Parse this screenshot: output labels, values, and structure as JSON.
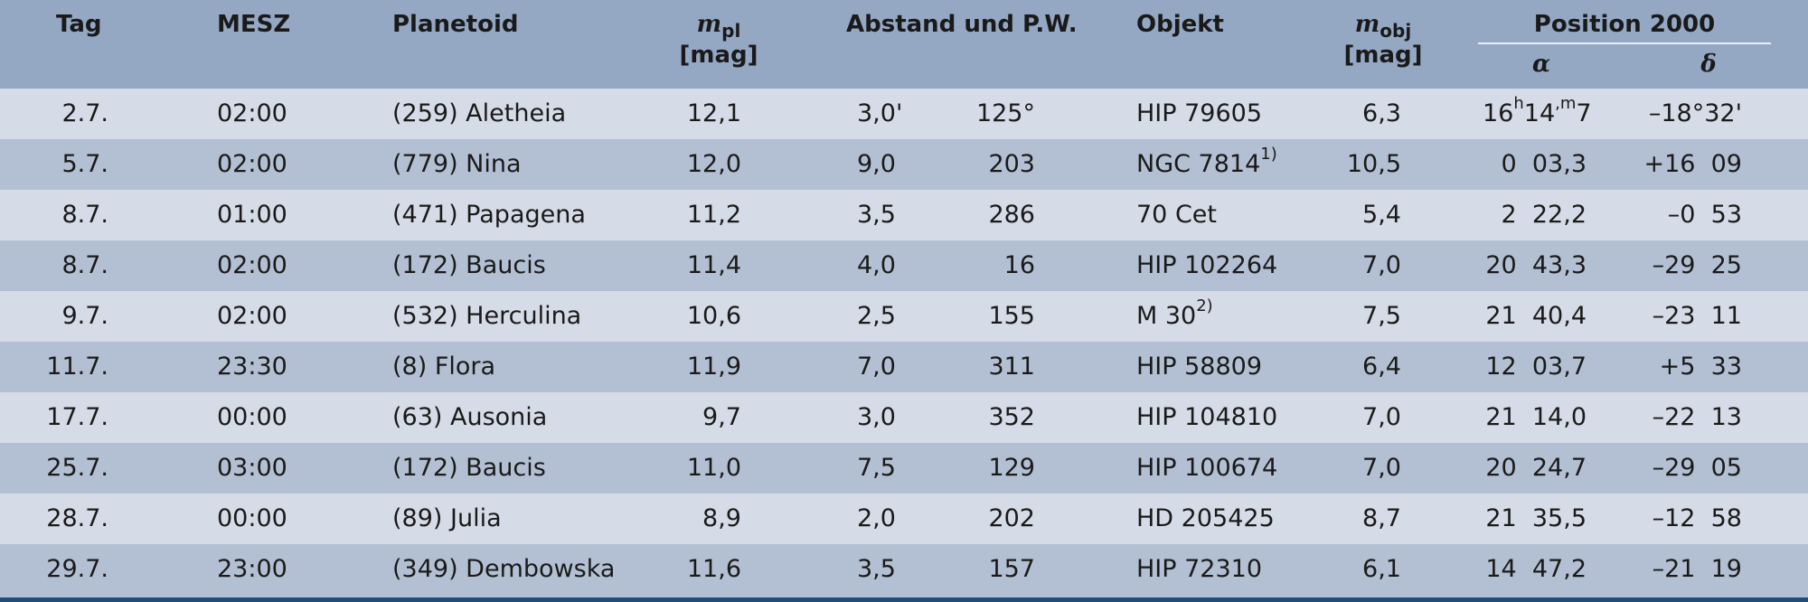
{
  "header": {
    "tag": "Tag",
    "mesz": "MESZ",
    "planetoid": "Planetoid",
    "mpl_main": "m",
    "mpl_sub": "pl",
    "mpl_unit": "[mag]",
    "abstand": "Abstand und P.W.",
    "objekt": "Objekt",
    "mobj_main": "m",
    "mobj_sub": "obj",
    "mobj_unit": "[mag]",
    "position": "Position 2000",
    "alpha": "α",
    "delta": "δ"
  },
  "rows": [
    {
      "tag": "2.7.",
      "mesz": "02:00",
      "planetoid": "(259) Aletheia",
      "mpl": "12,1",
      "abstand": "3,0'",
      "pw": "125°",
      "objekt": "HIP 79605",
      "note": "",
      "mobj": "6,3",
      "alpha_h": "16",
      "alpha_m": "14",
      "alpha_f": "7",
      "delta": "–18°32'"
    },
    {
      "tag": "5.7.",
      "mesz": "02:00",
      "planetoid": "(779) Nina",
      "mpl": "12,0",
      "abstand": "9,0",
      "pw": "203",
      "objekt": "NGC 7814",
      "note": "1)",
      "mobj": "10,5",
      "alpha": "0  03,3",
      "delta": "+16  09"
    },
    {
      "tag": "8.7.",
      "mesz": "01:00",
      "planetoid": "(471) Papagena",
      "mpl": "11,2",
      "abstand": "3,5",
      "pw": "286",
      "objekt": "70 Cet",
      "note": "",
      "mobj": "5,4",
      "alpha": "2  22,2",
      "delta": "–0  53"
    },
    {
      "tag": "8.7.",
      "mesz": "02:00",
      "planetoid": "(172) Baucis",
      "mpl": "11,4",
      "abstand": "4,0",
      "pw": "16",
      "objekt": "HIP 102264",
      "note": "",
      "mobj": "7,0",
      "alpha": "20  43,3",
      "delta": "–29  25"
    },
    {
      "tag": "9.7.",
      "mesz": "02:00",
      "planetoid": "(532) Herculina",
      "mpl": "10,6",
      "abstand": "2,5",
      "pw": "155",
      "objekt": "M 30",
      "note": "2)",
      "mobj": "7,5",
      "alpha": "21  40,4",
      "delta": "–23  11"
    },
    {
      "tag": "11.7.",
      "mesz": "23:30",
      "planetoid": "(8) Flora",
      "mpl": "11,9",
      "abstand": "7,0",
      "pw": "311",
      "objekt": "HIP 58809",
      "note": "",
      "mobj": "6,4",
      "alpha": "12  03,7",
      "delta": "+5  33"
    },
    {
      "tag": "17.7.",
      "mesz": "00:00",
      "planetoid": "(63) Ausonia",
      "mpl": "9,7",
      "abstand": "3,0",
      "pw": "352",
      "objekt": "HIP 104810",
      "note": "",
      "mobj": "7,0",
      "alpha": "21  14,0",
      "delta": "–22  13"
    },
    {
      "tag": "25.7.",
      "mesz": "03:00",
      "planetoid": "(172) Baucis",
      "mpl": "11,0",
      "abstand": "7,5",
      "pw": "129",
      "objekt": "HIP 100674",
      "note": "",
      "mobj": "7,0",
      "alpha": "20  24,7",
      "delta": "–29  05"
    },
    {
      "tag": "28.7.",
      "mesz": "00:00",
      "planetoid": "(89) Julia",
      "mpl": "8,9",
      "abstand": "2,0",
      "pw": "202",
      "objekt": "HD 205425",
      "note": "",
      "mobj": "8,7",
      "alpha": "21  35,5",
      "delta": "–12  58"
    },
    {
      "tag": "29.7.",
      "mesz": "23:00",
      "planetoid": "(349) Dembowska",
      "mpl": "11,6",
      "abstand": "3,5",
      "pw": "157",
      "objekt": "HIP 72310",
      "note": "",
      "mobj": "6,1",
      "alpha": "14  47,2",
      "delta": "–21  19"
    }
  ]
}
